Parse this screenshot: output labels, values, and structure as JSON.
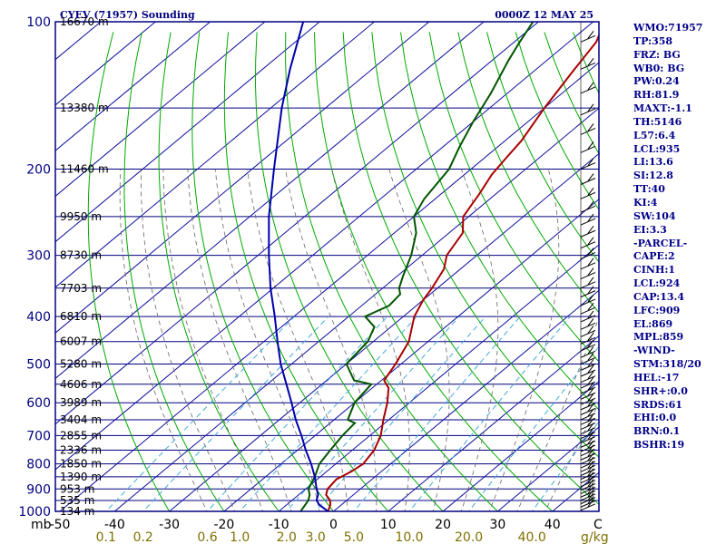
{
  "chart_data": {
    "type": "line",
    "title_left": "CYEV (71957) Sounding",
    "title_right": "0000Z 12 MAY 25",
    "pressure_unit": "mb",
    "mixing_ratio_unit": "g/kg",
    "pressure_levels": [
      100,
      200,
      300,
      400,
      500,
      600,
      700,
      800,
      900,
      1000
    ],
    "temperature_ticks": [
      -50,
      -40,
      -30,
      -20,
      -10,
      0,
      10,
      20,
      30,
      40
    ],
    "temperature_edge_label": "C",
    "mixing_ratio_ticks": [
      "0.1",
      "0.2",
      "0.6",
      "1.0",
      "2.0",
      "3.0",
      "5.0",
      "10.0",
      "20.0",
      "40.0"
    ],
    "height_labels": [
      {
        "h": "16670 m",
        "p": 100
      },
      {
        "h": "13380 m",
        "p": 150
      },
      {
        "h": "11460 m",
        "p": 200
      },
      {
        "h": "9950 m",
        "p": 250
      },
      {
        "h": "8730 m",
        "p": 300
      },
      {
        "h": "7703 m",
        "p": 350
      },
      {
        "h": "6810 m",
        "p": 400
      },
      {
        "h": "6007 m",
        "p": 450
      },
      {
        "h": "5280 m",
        "p": 500
      },
      {
        "h": "4606 m",
        "p": 550
      },
      {
        "h": "3989 m",
        "p": 600
      },
      {
        "h": "3404 m",
        "p": 650
      },
      {
        "h": "2855 m",
        "p": 700
      },
      {
        "h": "2336 m",
        "p": 750
      },
      {
        "h": "1850 m",
        "p": 800
      },
      {
        "h": "1390 m",
        "p": 850
      },
      {
        "h": "953 m",
        "p": 900
      },
      {
        "h": "535 m",
        "p": 950
      },
      {
        "h": "134 m",
        "p": 1000
      }
    ],
    "series": [
      {
        "name": "Temperature",
        "color": "#aa0000",
        "points": [
          {
            "p": 1000,
            "t": -1
          },
          {
            "p": 970,
            "t": -2
          },
          {
            "p": 950,
            "t": -3
          },
          {
            "p": 925,
            "t": -5
          },
          {
            "p": 900,
            "t": -6
          },
          {
            "p": 860,
            "t": -6.5
          },
          {
            "p": 830,
            "t": -5.5
          },
          {
            "p": 800,
            "t": -5
          },
          {
            "p": 750,
            "t": -6
          },
          {
            "p": 700,
            "t": -8
          },
          {
            "p": 650,
            "t": -11
          },
          {
            "p": 600,
            "t": -14
          },
          {
            "p": 560,
            "t": -17
          },
          {
            "p": 540,
            "t": -19.5
          },
          {
            "p": 500,
            "t": -21
          },
          {
            "p": 450,
            "t": -23.5
          },
          {
            "p": 400,
            "t": -28
          },
          {
            "p": 370,
            "t": -30
          },
          {
            "p": 350,
            "t": -31
          },
          {
            "p": 320,
            "t": -33
          },
          {
            "p": 300,
            "t": -35.5
          },
          {
            "p": 270,
            "t": -37.5
          },
          {
            "p": 250,
            "t": -41
          },
          {
            "p": 225,
            "t": -43
          },
          {
            "p": 205,
            "t": -45
          },
          {
            "p": 190,
            "t": -46
          },
          {
            "p": 175,
            "t": -47
          },
          {
            "p": 150,
            "t": -50
          },
          {
            "p": 125,
            "t": -53
          },
          {
            "p": 110,
            "t": -55
          },
          {
            "p": 103,
            "t": -57
          },
          {
            "p": 100,
            "t": -58
          }
        ]
      },
      {
        "name": "Dewpoint",
        "color": "#005500",
        "points": [
          {
            "p": 1000,
            "t": -6
          },
          {
            "p": 950,
            "t": -7
          },
          {
            "p": 925,
            "t": -8
          },
          {
            "p": 900,
            "t": -9.5
          },
          {
            "p": 850,
            "t": -11
          },
          {
            "p": 800,
            "t": -13
          },
          {
            "p": 750,
            "t": -14
          },
          {
            "p": 700,
            "t": -15
          },
          {
            "p": 660,
            "t": -15.5
          },
          {
            "p": 650,
            "t": -17.5
          },
          {
            "p": 600,
            "t": -20
          },
          {
            "p": 550,
            "t": -21
          },
          {
            "p": 540,
            "t": -25
          },
          {
            "p": 500,
            "t": -30
          },
          {
            "p": 450,
            "t": -31
          },
          {
            "p": 420,
            "t": -33
          },
          {
            "p": 400,
            "t": -37
          },
          {
            "p": 380,
            "t": -35
          },
          {
            "p": 360,
            "t": -35.5
          },
          {
            "p": 350,
            "t": -37
          },
          {
            "p": 330,
            "t": -39
          },
          {
            "p": 300,
            "t": -42
          },
          {
            "p": 270,
            "t": -46
          },
          {
            "p": 250,
            "t": -50
          },
          {
            "p": 230,
            "t": -52
          },
          {
            "p": 200,
            "t": -54
          },
          {
            "p": 180,
            "t": -57
          },
          {
            "p": 160,
            "t": -60
          },
          {
            "p": 140,
            "t": -63
          },
          {
            "p": 120,
            "t": -67
          },
          {
            "p": 110,
            "t": -69
          },
          {
            "p": 100,
            "t": -71
          }
        ]
      },
      {
        "name": "Parcel",
        "color": "#0000aa",
        "points": [
          {
            "p": 1000,
            "t": -1
          },
          {
            "p": 970,
            "t": -4
          },
          {
            "p": 950,
            "t": -5.5
          },
          {
            "p": 924,
            "t": -6.5
          },
          {
            "p": 900,
            "t": -8
          },
          {
            "p": 850,
            "t": -11
          },
          {
            "p": 800,
            "t": -14.5
          },
          {
            "p": 750,
            "t": -18.5
          },
          {
            "p": 700,
            "t": -22.5
          },
          {
            "p": 650,
            "t": -27
          },
          {
            "p": 600,
            "t": -31.5
          },
          {
            "p": 550,
            "t": -36.5
          },
          {
            "p": 500,
            "t": -42
          },
          {
            "p": 450,
            "t": -47.5
          },
          {
            "p": 400,
            "t": -53.5
          },
          {
            "p": 350,
            "t": -60.5
          },
          {
            "p": 300,
            "t": -68
          },
          {
            "p": 250,
            "t": -76.5
          },
          {
            "p": 200,
            "t": -86
          },
          {
            "p": 150,
            "t": -98
          },
          {
            "p": 125,
            "t": -105
          },
          {
            "p": 100,
            "t": -113
          }
        ]
      }
    ],
    "grid": true,
    "wind_barbs": "right edge"
  },
  "stats": [
    "WMO:71957",
    "TP:358",
    "FRZ: BG",
    "WB0: BG",
    "PW:0.24",
    "RH:81.9",
    "MAXT:-1.1",
    "TH:5146",
    "L57:6.4",
    "LCL:935",
    "LI:13.6",
    "SI:12.8",
    "TT:40",
    "KI:4",
    "SW:104",
    "EI:3.3",
    "-PARCEL-",
    "CAPE:2",
    "CINH:1",
    "LCL:924",
    "CAP:13.4",
    "LFC:909",
    "EL:869",
    "MPL:859",
    "-WIND-",
    "STM:318/20",
    "HEL:-17",
    "SHR+:0.0",
    "SRDS:61",
    "EHI:0.0",
    "BRN:0.1",
    "BSHR:19"
  ],
  "colors": {
    "frame": "#000080",
    "isobar": "#000080",
    "isotherm": "#1010a0",
    "dry_adiabat": "#00aa00",
    "moist_adiabat": "#666666",
    "mixing_ratio": "#44aadd",
    "axis_text_temp": "#000000",
    "axis_text_mix": "#807000",
    "axis_text_p": "#000080"
  }
}
